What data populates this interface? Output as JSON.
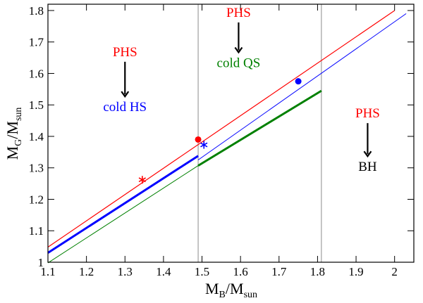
{
  "chart_data": {
    "type": "line",
    "xlabel": {
      "main": "M",
      "sub1": "B",
      "mid": "/M",
      "sub2": "sun"
    },
    "ylabel": {
      "main": "M",
      "sub1": "G",
      "mid": "/M",
      "sub2": "sun"
    },
    "xlim": [
      1.1,
      2.05
    ],
    "ylim": [
      1.0,
      1.82
    ],
    "xticks": [
      1.1,
      1.2,
      1.3,
      1.4,
      1.5,
      1.6,
      1.7,
      1.8,
      1.9,
      2.0
    ],
    "xtick_labels": [
      "1.1",
      "1.2",
      "1.3",
      "1.4",
      "1.5",
      "1.6",
      "1.7",
      "1.8",
      "1.9",
      "2"
    ],
    "yticks": [
      1.0,
      1.1,
      1.2,
      1.3,
      1.4,
      1.5,
      1.6,
      1.7,
      1.8
    ],
    "ytick_labels": [
      "1",
      "1.1",
      "1.2",
      "1.3",
      "1.4",
      "1.5",
      "1.6",
      "1.7",
      "1.8"
    ],
    "vlines": [
      1.49,
      1.81
    ],
    "series": [
      {
        "name": "PHS (red)",
        "color": "#ff0000",
        "width": 1.2,
        "x": [
          1.1,
          2.0
        ],
        "y": [
          1.048,
          1.8
        ]
      },
      {
        "name": "cold HS (blue, thin)",
        "color": "#0000ff",
        "width": 1.0,
        "x": [
          1.49,
          2.03
        ],
        "y": [
          1.325,
          1.79
        ]
      },
      {
        "name": "cold HS (blue, thick)",
        "color": "#0000ff",
        "width": 3.0,
        "x": [
          1.1,
          1.49
        ],
        "y": [
          1.03,
          1.338
        ]
      },
      {
        "name": "cold QS (green, thin)",
        "color": "#008000",
        "width": 1.0,
        "x": [
          1.1,
          1.49
        ],
        "y": [
          0.998,
          1.307
        ]
      },
      {
        "name": "cold QS (green, thick)",
        "color": "#008000",
        "width": 3.0,
        "x": [
          1.49,
          1.81
        ],
        "y": [
          1.307,
          1.545
        ]
      }
    ],
    "markers": [
      {
        "shape": "star",
        "color": "#ff0000",
        "x": 1.345,
        "y": 1.262
      },
      {
        "shape": "circle",
        "color": "#ff0000",
        "x": 1.49,
        "y": 1.39
      },
      {
        "shape": "star",
        "color": "#0000ff",
        "x": 1.505,
        "y": 1.373
      },
      {
        "shape": "circle",
        "color": "#0000ff",
        "x": 1.75,
        "y": 1.575
      }
    ],
    "annotations": [
      {
        "region": "left",
        "top": "PHS",
        "top_color": "#ff0000",
        "bottom": "cold HS",
        "bottom_color": "#0000ff",
        "x": 1.3,
        "y_top": 1.655,
        "y_bottom": 1.48
      },
      {
        "region": "middle",
        "top": "PHS",
        "top_color": "#ff0000",
        "bottom": "cold QS",
        "bottom_color": "#008000",
        "x": 1.595,
        "y_top": 1.78,
        "y_bottom": 1.62
      },
      {
        "region": "right",
        "top": "PHS",
        "top_color": "#ff0000",
        "bottom": "BH",
        "bottom_color": "#000000",
        "x": 1.93,
        "y_top": 1.46,
        "y_bottom": 1.29
      }
    ]
  }
}
